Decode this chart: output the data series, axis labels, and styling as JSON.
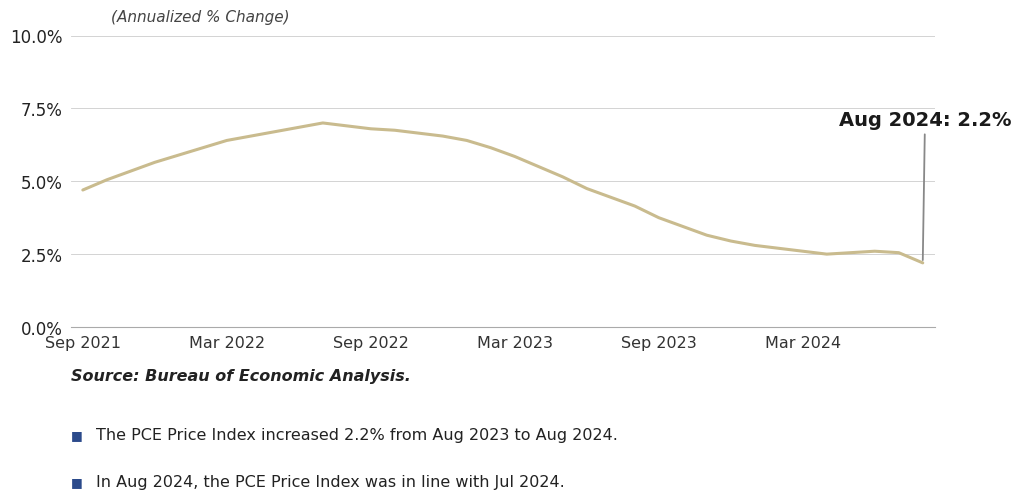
{
  "subtitle": "(Annualized % Change)",
  "source": "Source: Bureau of Economic Analysis.",
  "bullet1": "The PCE Price Index increased 2.2% from Aug 2023 to Aug 2024.",
  "bullet2": "In Aug 2024, the PCE Price Index was in line with Jul 2024.",
  "annotation": "Aug 2024: 2.2%",
  "line_color": "#C9BB8E",
  "line_width": 2.2,
  "annotation_color": "#1a1a1a",
  "annotation_fontsize": 14,
  "background_color": "#FFFFFF",
  "ylim": [
    0.0,
    10.0
  ],
  "yticks": [
    0.0,
    2.5,
    5.0,
    7.5,
    10.0
  ],
  "xtick_labels": [
    "Sep 2021",
    "Mar 2022",
    "Sep 2022",
    "Mar 2023",
    "Sep 2023",
    "Mar 2024"
  ],
  "x_values": [
    0,
    1,
    2,
    3,
    4,
    5,
    6,
    7,
    8,
    9,
    10,
    11,
    12,
    13,
    14,
    15,
    16,
    17,
    18,
    19,
    20,
    21,
    22,
    23,
    24,
    25,
    26,
    27,
    28,
    29,
    30,
    31,
    32,
    33,
    34,
    35
  ],
  "y_values": [
    4.7,
    5.05,
    5.35,
    5.65,
    5.9,
    6.15,
    6.4,
    6.55,
    6.7,
    6.85,
    7.0,
    6.9,
    6.8,
    6.75,
    6.65,
    6.55,
    6.4,
    6.15,
    5.85,
    5.5,
    5.15,
    4.75,
    4.45,
    4.15,
    3.75,
    3.45,
    3.15,
    2.95,
    2.8,
    2.7,
    2.6,
    2.5,
    2.55,
    2.6,
    2.55,
    2.2
  ],
  "xtick_positions": [
    0,
    6,
    12,
    18,
    24,
    30
  ],
  "bullet_color": "#2B4A8B"
}
